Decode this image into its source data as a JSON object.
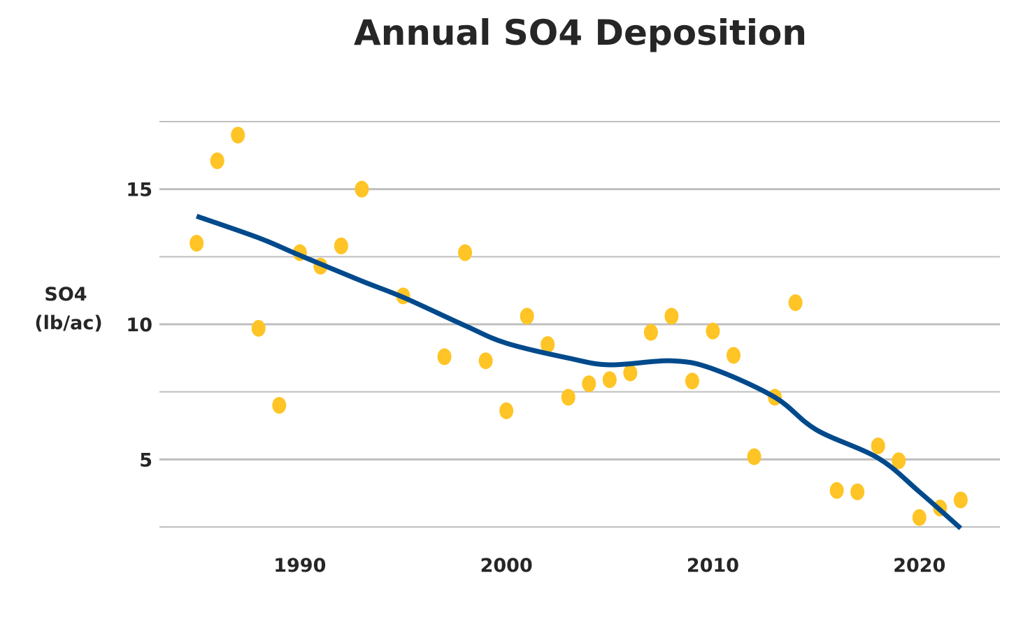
{
  "chart_data": {
    "type": "scatter",
    "title": "Annual SO4 Deposition",
    "xlabel": "",
    "ylabel": [
      "SO4",
      "(lb/ac)"
    ],
    "xlim": [
      1983.2,
      2023.9
    ],
    "ylim": [
      2.5,
      17.5
    ],
    "x_ticks": [
      1990,
      2000,
      2010,
      2020
    ],
    "y_ticks": [
      5,
      10,
      15
    ],
    "gridlines": [
      2.5,
      5,
      7.5,
      10,
      12.5,
      15,
      17.5
    ],
    "grid": true,
    "colors": {
      "points": "#FFC425",
      "trend": "#004A8C",
      "grid": "#BFBFBF",
      "text": "#262626"
    },
    "points": {
      "x": [
        1985,
        1986,
        1987,
        1988,
        1989,
        1990,
        1991,
        1992,
        1993,
        1995,
        1997,
        1998,
        1999,
        2000,
        2001,
        2002,
        2003,
        2004,
        2005,
        2006,
        2007,
        2008,
        2009,
        2010,
        2011,
        2012,
        2013,
        2014,
        2016,
        2017,
        2018,
        2019,
        2020,
        2021,
        2022
      ],
      "y": [
        13.0,
        16.05,
        17.0,
        9.85,
        7.0,
        12.65,
        12.15,
        12.9,
        15.0,
        11.05,
        8.8,
        12.65,
        8.65,
        6.8,
        10.3,
        9.25,
        7.3,
        7.8,
        7.95,
        8.2,
        9.7,
        10.3,
        7.9,
        9.75,
        8.85,
        5.1,
        7.3,
        10.8,
        3.85,
        3.8,
        5.5,
        4.95,
        2.85,
        3.2,
        3.5
      ]
    },
    "trend": {
      "x": [
        1985,
        1988,
        1990,
        1993,
        1995,
        1998,
        2000,
        2003,
        2005,
        2008,
        2010,
        2013,
        2015,
        2018,
        2020,
        2022
      ],
      "y": [
        14.0,
        13.2,
        12.55,
        11.6,
        11.0,
        9.95,
        9.3,
        8.75,
        8.5,
        8.65,
        8.35,
        7.3,
        6.1,
        5.05,
        3.8,
        2.45
      ]
    }
  }
}
